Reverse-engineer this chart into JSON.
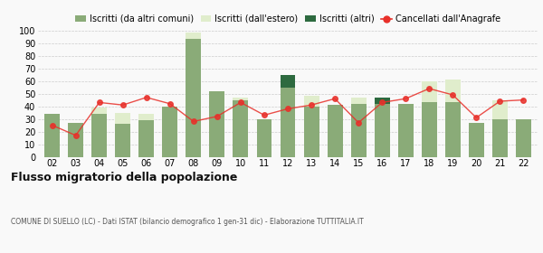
{
  "years": [
    "02",
    "03",
    "04",
    "05",
    "06",
    "07",
    "08",
    "09",
    "10",
    "11",
    "12",
    "13",
    "14",
    "15",
    "16",
    "17",
    "18",
    "19",
    "20",
    "21",
    "22"
  ],
  "iscritti_altri_comuni": [
    34,
    27,
    34,
    26,
    29,
    40,
    93,
    52,
    45,
    30,
    55,
    40,
    41,
    42,
    42,
    42,
    43,
    43,
    27,
    30,
    30
  ],
  "iscritti_estero": [
    0,
    0,
    5,
    9,
    5,
    0,
    5,
    0,
    2,
    0,
    0,
    8,
    0,
    5,
    0,
    0,
    17,
    18,
    0,
    15,
    0
  ],
  "iscritti_altri": [
    0,
    0,
    0,
    0,
    0,
    0,
    0,
    0,
    0,
    0,
    10,
    0,
    0,
    0,
    5,
    0,
    0,
    0,
    0,
    0,
    0
  ],
  "cancellati": [
    25,
    17,
    43,
    41,
    47,
    42,
    28,
    32,
    43,
    33,
    38,
    41,
    46,
    27,
    43,
    46,
    54,
    49,
    31,
    44,
    45
  ],
  "color_altri_comuni": "#8aab78",
  "color_estero": "#e0edcc",
  "color_altri": "#2d6a3f",
  "color_cancellati": "#e8302a",
  "color_cancellati_line": "#e8302a",
  "title": "Flusso migratorio della popolazione",
  "subtitle": "COMUNE DI SUELLO (LC) - Dati ISTAT (bilancio demografico 1 gen-31 dic) - Elaborazione TUTTITALIA.IT",
  "legend_labels": [
    "Iscritti (da altri comuni)",
    "Iscritti (dall'estero)",
    "Iscritti (altri)",
    "Cancellati dall'Anagrafe"
  ],
  "ylim": [
    0,
    100
  ],
  "yticks": [
    0,
    10,
    20,
    30,
    40,
    50,
    60,
    70,
    80,
    90,
    100
  ],
  "bg_color": "#f9f9f9",
  "grid_color": "#cccccc"
}
